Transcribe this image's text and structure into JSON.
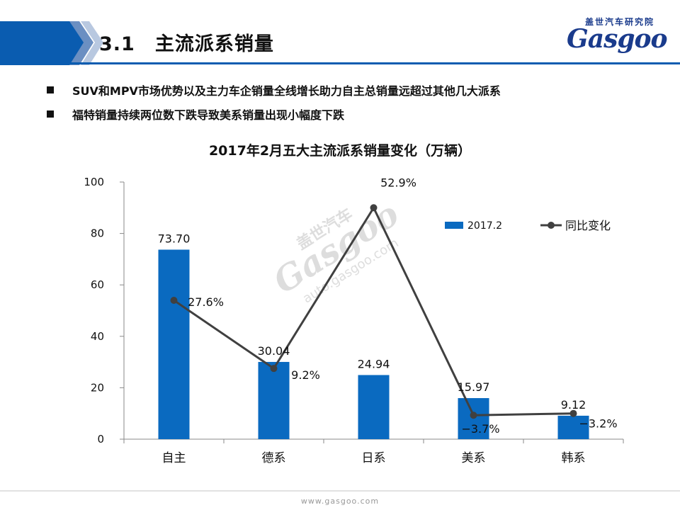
{
  "header": {
    "section_title": "3.1　主流派系销量",
    "logo_cn": "盖世汽车研究院",
    "logo_en": "Gasgoo"
  },
  "bullets": [
    "SUV和MPV市场优势以及主力车企销量全线增长助力自主总销量远超过其他几大派系",
    "福特销量持续两位数下跌导致美系销量出现小幅度下跌"
  ],
  "watermark": {
    "cn": "盖世汽车",
    "brand": "Gasgoo",
    "url": "auto.gasgoo.com"
  },
  "footer": {
    "url": "www.gasgoo.com"
  },
  "colors": {
    "bar": "#0a6ac0",
    "line": "#404040",
    "accent": "#1a3b8c"
  },
  "chart_data": {
    "type": "bar",
    "title": "2017年2月五大主流派系销量变化（万辆）",
    "categories": [
      "自主",
      "德系",
      "日系",
      "美系",
      "韩系"
    ],
    "ylim": [
      0,
      100
    ],
    "yticks": [
      0,
      20,
      40,
      60,
      80,
      100
    ],
    "legend_position": "top-right",
    "series": [
      {
        "name": "2017.2",
        "kind": "bar",
        "values": [
          73.7,
          30.04,
          24.94,
          15.97,
          9.12
        ],
        "labels": [
          "73.70",
          "30.04",
          "24.94",
          "15.97",
          "9.12"
        ]
      },
      {
        "name": "同比变化",
        "kind": "line",
        "values": [
          27.6,
          9.2,
          52.9,
          -3.7,
          -3.2
        ],
        "plot_on_left_axis": [
          54,
          27.5,
          90,
          9.3,
          10
        ],
        "labels": [
          "27.6%",
          "9.2%",
          "52.9%",
          "−3.7%",
          "−3.2%"
        ]
      }
    ]
  }
}
